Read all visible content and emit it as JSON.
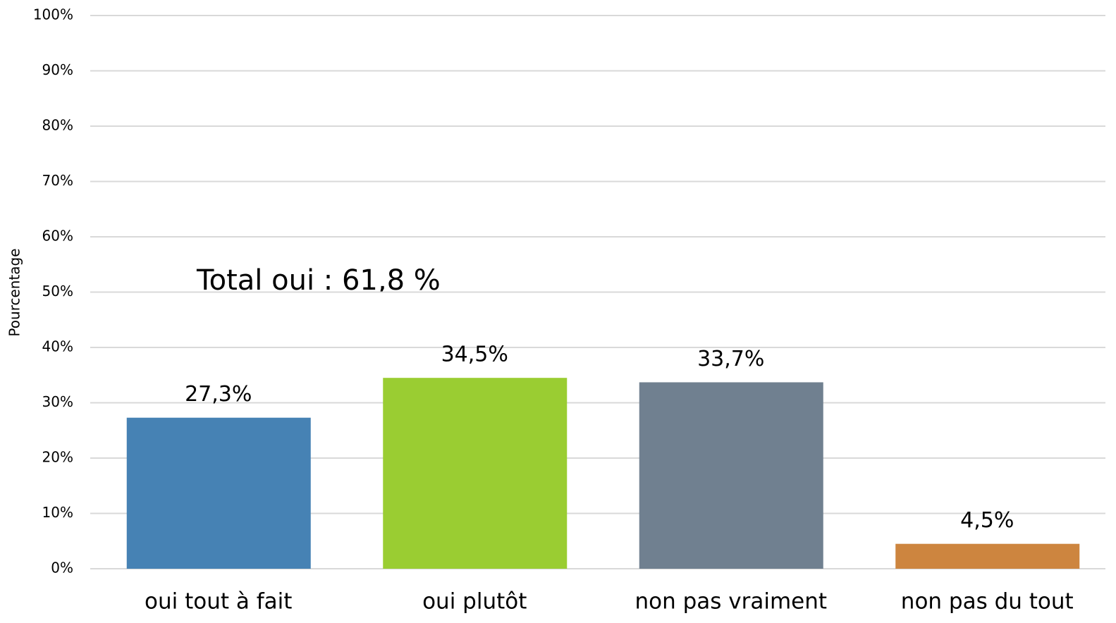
{
  "chart_data": {
    "type": "bar",
    "y_label": "Pourcentage",
    "annotation": "Total oui : 61,8 %",
    "categories": [
      "oui tout à fait",
      "oui plutôt",
      "non pas vraiment",
      "non pas du tout"
    ],
    "values": [
      27.3,
      34.5,
      33.7,
      4.5
    ],
    "value_labels": [
      "27,3%",
      "34,5%",
      "33,7%",
      "4,5%"
    ],
    "colors": [
      "#4682b4",
      "#9acd32",
      "#708090",
      "#cd853f"
    ],
    "ylim": [
      0,
      100
    ],
    "yticks": [
      {
        "value": 0,
        "label": "0%"
      },
      {
        "value": 10,
        "label": "10%"
      },
      {
        "value": 20,
        "label": "20%"
      },
      {
        "value": 30,
        "label": "30%"
      },
      {
        "value": 40,
        "label": "40%"
      },
      {
        "value": 50,
        "label": "50%"
      },
      {
        "value": 60,
        "label": "60%"
      },
      {
        "value": 70,
        "label": "70%"
      },
      {
        "value": 80,
        "label": "80%"
      },
      {
        "value": 90,
        "label": "90%"
      },
      {
        "value": 100,
        "label": "100%"
      }
    ],
    "grid": true
  }
}
